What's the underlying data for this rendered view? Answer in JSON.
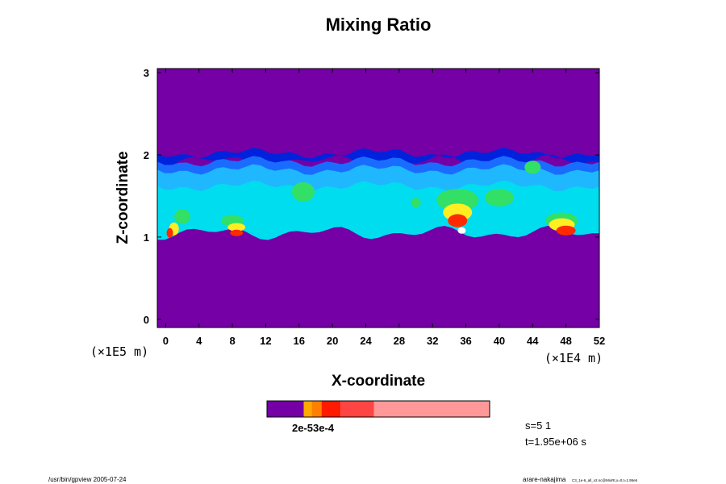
{
  "chart_data": {
    "type": "heatmap",
    "title": "Mixing Ratio",
    "xlabel": "X-coordinate",
    "ylabel": "Z-coordinate",
    "x_unit": "(×1E4 m)",
    "z_unit": "(×1E5 m)",
    "xlim": [
      -1,
      52
    ],
    "ylim": [
      -0.1,
      3.05
    ],
    "x_ticks": [
      "0",
      "4",
      "8",
      "12",
      "16",
      "20",
      "24",
      "28",
      "32",
      "36",
      "40",
      "44",
      "48",
      "52"
    ],
    "y_ticks": [
      "0",
      "1",
      "2",
      "3"
    ],
    "background_color": "#7400a6",
    "layer": {
      "z_bottom": 0.95,
      "z_top": 2.02
    },
    "colorbar": {
      "colors": [
        "#7400a6",
        "#ffaa00",
        "#ff7f00",
        "#ff1a00",
        "#ff4444",
        "#ff9999"
      ],
      "fractions": [
        0.0,
        0.165,
        0.2,
        0.245,
        0.33,
        0.48,
        1.0
      ],
      "labels": "2e-53e-4"
    },
    "info": {
      "s": "s=5 1",
      "t": "t=1.95e+06 s"
    }
  },
  "footer": {
    "left": "/usr/bin/gpview 2005-07-24",
    "right_main": "arare-nakajima",
    "right_small": "C3_1e-6_all_v2.nc@MixRt,x=0,t=1.95e6"
  }
}
